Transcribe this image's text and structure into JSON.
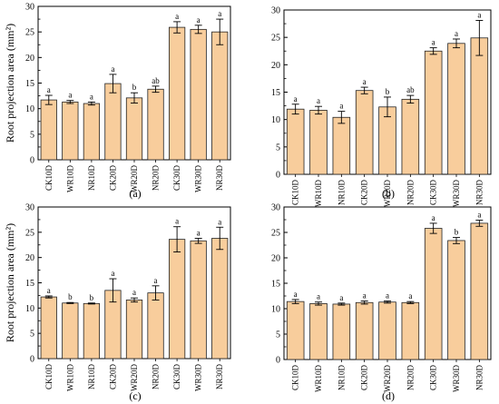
{
  "figure": {
    "ylabel": "Root projection area (mm²)"
  },
  "chart_data": [
    {
      "type": "bar",
      "panel_label": "(a)",
      "categories": [
        "CK10D",
        "WR10D",
        "NR10D",
        "CK20D",
        "WR20D",
        "NR20D",
        "CK30D",
        "WR30D",
        "NR30D"
      ],
      "values": [
        11.7,
        11.3,
        11.0,
        14.9,
        12.1,
        13.8,
        25.9,
        25.5,
        25.0
      ],
      "errors": [
        0.9,
        0.3,
        0.3,
        1.8,
        1.0,
        0.6,
        1.1,
        0.8,
        2.5
      ],
      "letters": [
        "a",
        "a",
        "a",
        "a",
        "b",
        "ab",
        "a",
        "a",
        "a"
      ],
      "ylim": [
        0,
        30
      ],
      "yticks": [
        "0",
        "5",
        "10",
        "15",
        "20",
        "25",
        "30"
      ],
      "ylabel": "Root projection area (mm²)",
      "bar_color": "#f8cd9c",
      "grid": false
    },
    {
      "type": "bar",
      "panel_label": "(b)",
      "categories": [
        "CK10D",
        "WR10D",
        "NR10D",
        "CK20D",
        "WR20D",
        "NR20D",
        "CK30D",
        "WR30D",
        "NR30D"
      ],
      "values": [
        11.9,
        11.7,
        10.4,
        15.3,
        12.3,
        13.7,
        22.5,
        23.9,
        24.9
      ],
      "errors": [
        0.9,
        0.7,
        1.1,
        0.6,
        1.8,
        0.7,
        0.6,
        0.8,
        3.2
      ],
      "letters": [
        "a",
        "a",
        "a",
        "a",
        "b",
        "ab",
        "a",
        "a",
        "a"
      ],
      "ylim": [
        0,
        30
      ],
      "yticks": [
        "0",
        "5",
        "10",
        "15",
        "20",
        "25",
        "30"
      ],
      "ylabel": "",
      "bar_color": "#f8cd9c",
      "grid": false
    },
    {
      "type": "bar",
      "panel_label": "(c)",
      "categories": [
        "CK10D",
        "WR10D",
        "NR10D",
        "CK20D",
        "WR20D",
        "NR20D",
        "CK30D",
        "WR30D",
        "NR30D"
      ],
      "values": [
        12.2,
        11.0,
        10.9,
        13.5,
        11.6,
        13.0,
        23.6,
        23.3,
        23.8
      ],
      "errors": [
        0.2,
        0.1,
        0.1,
        2.3,
        0.4,
        1.4,
        2.5,
        0.5,
        2.2
      ],
      "letters": [
        "a",
        "b",
        "b",
        "a",
        "a",
        "a",
        "a",
        "a",
        "a"
      ],
      "ylim": [
        0,
        30
      ],
      "yticks": [
        "0",
        "5",
        "10",
        "15",
        "20",
        "25",
        "30"
      ],
      "ylabel": "Root projection area (mm²)",
      "bar_color": "#f8cd9c",
      "grid": false
    },
    {
      "type": "bar",
      "panel_label": "(d)",
      "categories": [
        "CK10D",
        "WR10D",
        "NR10D",
        "CK20D",
        "WR20D",
        "NR20D",
        "CK30D",
        "WR30D",
        "NR30D"
      ],
      "values": [
        11.4,
        11.0,
        10.9,
        11.2,
        11.3,
        11.2,
        25.8,
        23.4,
        26.8
      ],
      "errors": [
        0.4,
        0.3,
        0.2,
        0.3,
        0.2,
        0.2,
        1.0,
        0.6,
        0.6
      ],
      "letters": [
        "a",
        "a",
        "a",
        "a",
        "a",
        "a",
        "a",
        "b",
        "a"
      ],
      "ylim": [
        0,
        30
      ],
      "yticks": [
        "0",
        "5",
        "10",
        "15",
        "20",
        "25",
        "30"
      ],
      "ylabel": "",
      "bar_color": "#f8cd9c",
      "grid": false
    }
  ]
}
